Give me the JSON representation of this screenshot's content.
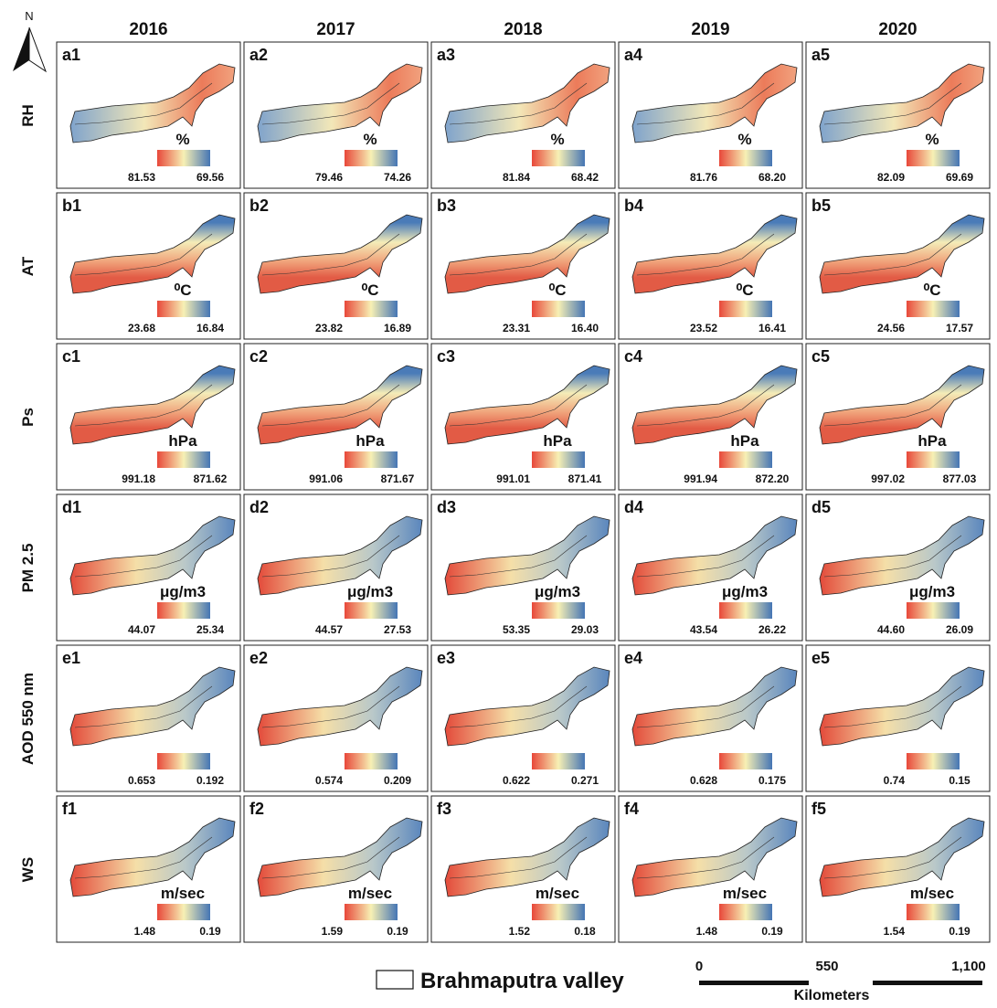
{
  "north": "N",
  "columns": [
    "2016",
    "2017",
    "2018",
    "2019",
    "2020"
  ],
  "rows": [
    {
      "label": "RH",
      "panels": [
        {
          "id": "a1",
          "unit": "%",
          "high": "81.53",
          "low": "69.56"
        },
        {
          "id": "a2",
          "unit": "%",
          "high": "79.46",
          "low": "74.26"
        },
        {
          "id": "a3",
          "unit": "%",
          "high": "81.84",
          "low": "68.42"
        },
        {
          "id": "a4",
          "unit": "%",
          "high": "81.76",
          "low": "68.20"
        },
        {
          "id": "a5",
          "unit": "%",
          "high": "82.09",
          "low": "69.69"
        }
      ]
    },
    {
      "label": "AT",
      "panels": [
        {
          "id": "b1",
          "unit": "⁰C",
          "high": "23.68",
          "low": "16.84"
        },
        {
          "id": "b2",
          "unit": "⁰C",
          "high": "23.82",
          "low": "16.89"
        },
        {
          "id": "b3",
          "unit": "⁰C",
          "high": "23.31",
          "low": "16.40"
        },
        {
          "id": "b4",
          "unit": "⁰C",
          "high": "23.52",
          "low": "16.41"
        },
        {
          "id": "b5",
          "unit": "⁰C",
          "high": "24.56",
          "low": "17.57"
        }
      ]
    },
    {
      "label": "Ps",
      "panels": [
        {
          "id": "c1",
          "unit": "hPa",
          "high": "991.18",
          "low": "871.62"
        },
        {
          "id": "c2",
          "unit": "hPa",
          "high": "991.06",
          "low": "871.67"
        },
        {
          "id": "c3",
          "unit": "hPa",
          "high": "991.01",
          "low": "871.41"
        },
        {
          "id": "c4",
          "unit": "hPa",
          "high": "991.94",
          "low": "872.20"
        },
        {
          "id": "c5",
          "unit": "hPa",
          "high": "997.02",
          "low": "877.03"
        }
      ]
    },
    {
      "label": "PM 2.5",
      "panels": [
        {
          "id": "d1",
          "unit": "μg/m3",
          "high": "44.07",
          "low": "25.34"
        },
        {
          "id": "d2",
          "unit": "μg/m3",
          "high": "44.57",
          "low": "27.53"
        },
        {
          "id": "d3",
          "unit": "μg/m3",
          "high": "53.35",
          "low": "29.03"
        },
        {
          "id": "d4",
          "unit": "μg/m3",
          "high": "43.54",
          "low": "26.22"
        },
        {
          "id": "d5",
          "unit": "μg/m3",
          "high": "44.60",
          "low": "26.09"
        }
      ]
    },
    {
      "label": "AOD 550 nm",
      "panels": [
        {
          "id": "e1",
          "unit": null,
          "high": "0.653",
          "low": "0.192"
        },
        {
          "id": "e2",
          "unit": null,
          "high": "0.574",
          "low": "0.209"
        },
        {
          "id": "e3",
          "unit": null,
          "high": "0.622",
          "low": "0.271"
        },
        {
          "id": "e4",
          "unit": null,
          "high": "0.628",
          "low": "0.175"
        },
        {
          "id": "e5",
          "unit": null,
          "high": "0.74",
          "low": "0.15"
        }
      ]
    },
    {
      "label": "WS",
      "panels": [
        {
          "id": "f1",
          "unit": "m/sec",
          "high": "1.48",
          "low": "0.19"
        },
        {
          "id": "f2",
          "unit": "m/sec",
          "high": "1.59",
          "low": "0.19"
        },
        {
          "id": "f3",
          "unit": "m/sec",
          "high": "1.52",
          "low": "0.18"
        },
        {
          "id": "f4",
          "unit": "m/sec",
          "high": "1.48",
          "low": "0.19"
        },
        {
          "id": "f5",
          "unit": "m/sec",
          "high": "1.54",
          "low": "0.19"
        }
      ]
    }
  ],
  "legend": "Brahmaputra valley",
  "scale_bar": {
    "ticks": [
      "0",
      "550",
      "1,100"
    ],
    "unit": "Kilometers"
  }
}
